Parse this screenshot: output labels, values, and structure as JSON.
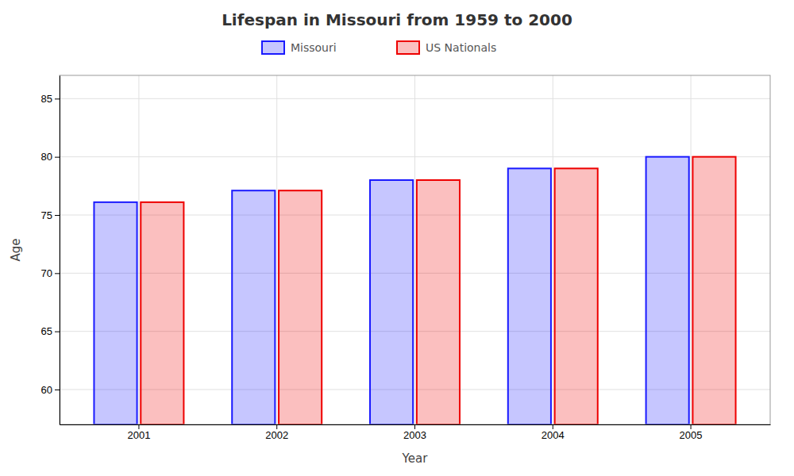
{
  "chart_data": {
    "type": "bar",
    "title": "Lifespan in Missouri from 1959 to 2000",
    "xlabel": "Year",
    "ylabel": "Age",
    "categories": [
      "2001",
      "2002",
      "2003",
      "2004",
      "2005"
    ],
    "series": [
      {
        "name": "Missouri",
        "color": "#1a1aff",
        "values": [
          76.1,
          77.1,
          78.0,
          79.0,
          80.0
        ]
      },
      {
        "name": "US Nationals",
        "color": "#ee0000",
        "values": [
          76.1,
          77.1,
          78.0,
          79.0,
          80.0
        ]
      }
    ],
    "ylim": [
      57,
      87
    ],
    "yticks": [
      60,
      65,
      70,
      75,
      80,
      85
    ],
    "grid": true,
    "legend": "top"
  }
}
